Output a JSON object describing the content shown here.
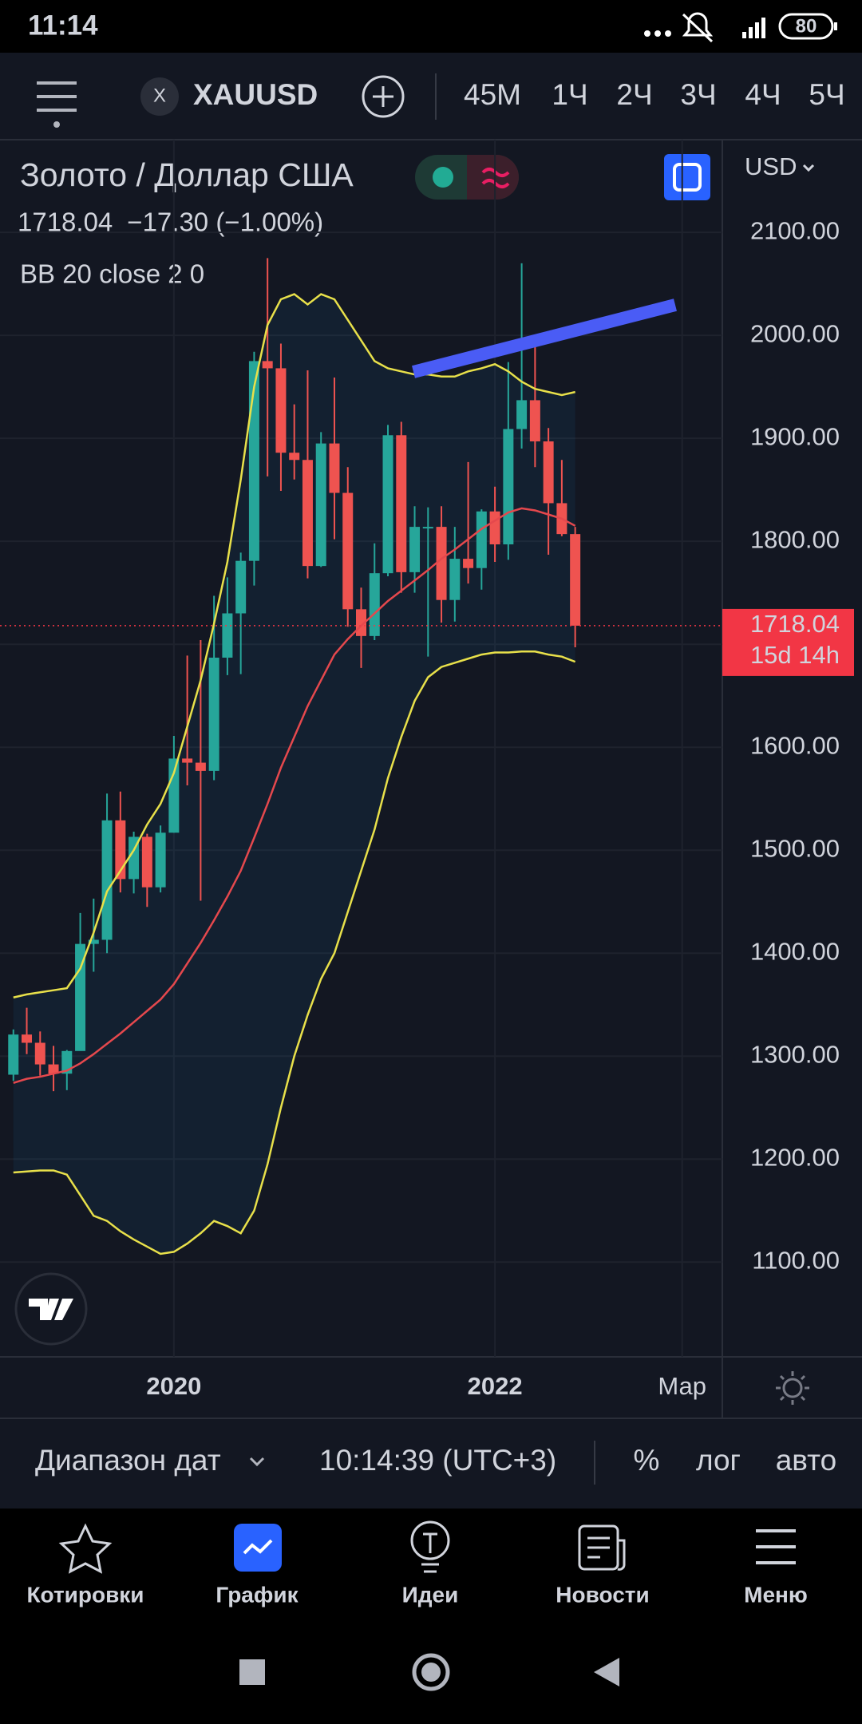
{
  "status_bar": {
    "time": "11:14",
    "battery": "80"
  },
  "toolbar": {
    "symbol_badge": "X",
    "symbol": "XAUUSD",
    "intervals": [
      "45M",
      "1Ч",
      "2Ч",
      "3Ч",
      "4Ч",
      "5Ч"
    ]
  },
  "legend": {
    "title": "Золото / Доллар США",
    "change": "−17.30 (−1.00%)",
    "indicator": "BB 20 close 2 0"
  },
  "chart_data": {
    "type": "candlestick",
    "currency": "USD",
    "x": [
      "2019-01",
      "2019-02",
      "2019-03",
      "2019-04",
      "2019-05",
      "2019-06",
      "2019-07",
      "2019-08",
      "2019-09",
      "2019-10",
      "2019-11",
      "2019-12",
      "2020-01",
      "2020-02",
      "2020-03",
      "2020-04",
      "2020-05",
      "2020-06",
      "2020-07",
      "2020-08",
      "2020-09",
      "2020-10",
      "2020-11",
      "2020-12",
      "2021-01",
      "2021-02",
      "2021-03",
      "2021-04",
      "2021-05",
      "2021-06",
      "2021-07",
      "2021-08",
      "2021-09",
      "2021-10",
      "2021-11",
      "2021-12",
      "2022-01",
      "2022-02",
      "2022-03",
      "2022-04",
      "2022-05",
      "2022-06",
      "2022-07"
    ],
    "open": [
      1282,
      1321,
      1313,
      1292,
      1283,
      1305,
      1409,
      1413,
      1529,
      1472,
      1513,
      1464,
      1517,
      1589,
      1585,
      1577,
      1687,
      1730,
      1781,
      1975,
      1968,
      1886,
      1879,
      1776,
      1895,
      1847,
      1734,
      1708,
      1769,
      1903,
      1770,
      1814,
      1814,
      1743,
      1783,
      1774,
      1829,
      1797,
      1909,
      1937,
      1897,
      1837,
      1807
    ],
    "high": [
      1326,
      1347,
      1324,
      1310,
      1306,
      1439,
      1453,
      1555,
      1557,
      1518,
      1516,
      1524,
      1611,
      1689,
      1704,
      1747,
      1765,
      1789,
      1984,
      2075,
      1992,
      1933,
      1966,
      1906,
      1959,
      1872,
      1755,
      1798,
      1913,
      1916,
      1834,
      1833,
      1834,
      1814,
      1877,
      1831,
      1853,
      1974,
      2070,
      1998,
      1910,
      1879,
      1814
    ],
    "low": [
      1276,
      1302,
      1281,
      1266,
      1267,
      1306,
      1382,
      1400,
      1459,
      1458,
      1445,
      1459,
      1517,
      1563,
      1451,
      1568,
      1670,
      1671,
      1757,
      1863,
      1849,
      1860,
      1764,
      1775,
      1802,
      1717,
      1677,
      1704,
      1766,
      1750,
      1750,
      1688,
      1721,
      1722,
      1759,
      1753,
      1780,
      1782,
      1890,
      1872,
      1787,
      1805,
      1697
    ],
    "close": [
      1321,
      1313,
      1292,
      1283,
      1305,
      1409,
      1413,
      1529,
      1472,
      1513,
      1464,
      1517,
      1589,
      1585,
      1577,
      1687,
      1730,
      1781,
      1975,
      1968,
      1886,
      1879,
      1776,
      1895,
      1847,
      1734,
      1708,
      1769,
      1903,
      1770,
      1814,
      1814,
      1743,
      1783,
      1774,
      1829,
      1797,
      1909,
      1937,
      1897,
      1837,
      1807,
      1718.04
    ],
    "up_color": "#26a69a",
    "down_color": "#ef5350",
    "series": [
      {
        "color": "#e8e04a",
        "values": [
          1357,
          1360,
          1362,
          1364,
          1366,
          1385,
          1420,
          1460,
          1480,
          1500,
          1525,
          1545,
          1575,
          1620,
          1665,
          1720,
          1780,
          1860,
          1950,
          2010,
          2035,
          2040,
          2030,
          2040,
          2035,
          2015,
          1995,
          1975,
          1968,
          1965,
          1962,
          1962,
          1960,
          1960,
          1965,
          1968,
          1972,
          1965,
          1955,
          1948,
          1945,
          1942,
          1945
        ]
      },
      {
        "color": "#e5484d",
        "values": [
          1274,
          1278,
          1280,
          1283,
          1286,
          1293,
          1302,
          1312,
          1322,
          1333,
          1344,
          1355,
          1370,
          1390,
          1410,
          1432,
          1455,
          1480,
          1512,
          1545,
          1580,
          1610,
          1640,
          1665,
          1690,
          1705,
          1718,
          1730,
          1742,
          1752,
          1762,
          1772,
          1783,
          1792,
          1802,
          1812,
          1820,
          1828,
          1832,
          1830,
          1826,
          1822,
          1815
        ]
      },
      {
        "color": "#e8e04a",
        "values": [
          1187,
          1188,
          1189,
          1189,
          1185,
          1165,
          1145,
          1140,
          1130,
          1122,
          1115,
          1108,
          1110,
          1118,
          1128,
          1140,
          1135,
          1128,
          1150,
          1195,
          1250,
          1300,
          1340,
          1375,
          1400,
          1440,
          1480,
          1520,
          1570,
          1610,
          1645,
          1668,
          1678,
          1682,
          1686,
          1690,
          1692,
          1692,
          1693,
          1693,
          1690,
          1688,
          1683
        ]
      }
    ],
    "ylim": [
      1008,
      2190
    ],
    "yticks": [
      {
        "value": 1100,
        "label": "1100.00"
      },
      {
        "value": 1200,
        "label": "1200.00"
      },
      {
        "value": 1300,
        "label": "1300.00"
      },
      {
        "value": 1400,
        "label": "1400.00"
      },
      {
        "value": 1500,
        "label": "1500.00"
      },
      {
        "value": 1600,
        "label": "1600.00"
      },
      {
        "value": 1700,
        "label": "1700.00"
      },
      {
        "value": 1800,
        "label": "1800.00"
      },
      {
        "value": 1900,
        "label": "1900.00"
      },
      {
        "value": 2000,
        "label": "2000.00"
      },
      {
        "value": 2100,
        "label": "2100.00"
      }
    ],
    "xlim": [
      "2018-12",
      "2023-06"
    ],
    "xticks": [
      {
        "value": "2020-01",
        "label": "2020"
      },
      {
        "value": "2022-01",
        "label": "2022"
      },
      {
        "value": "2023-03",
        "label": "Мар"
      }
    ],
    "grid": true,
    "last_price": 1718.04,
    "countdown": "15d 14h"
  },
  "bottom_bar": {
    "date_range": "Диапазон дат",
    "clock": "10:14:39 (UTC+3)",
    "percent": "%",
    "log": "лог",
    "auto": "авто"
  },
  "nav": [
    "Котировки",
    "График",
    "Идеи",
    "Новости",
    "Меню"
  ]
}
